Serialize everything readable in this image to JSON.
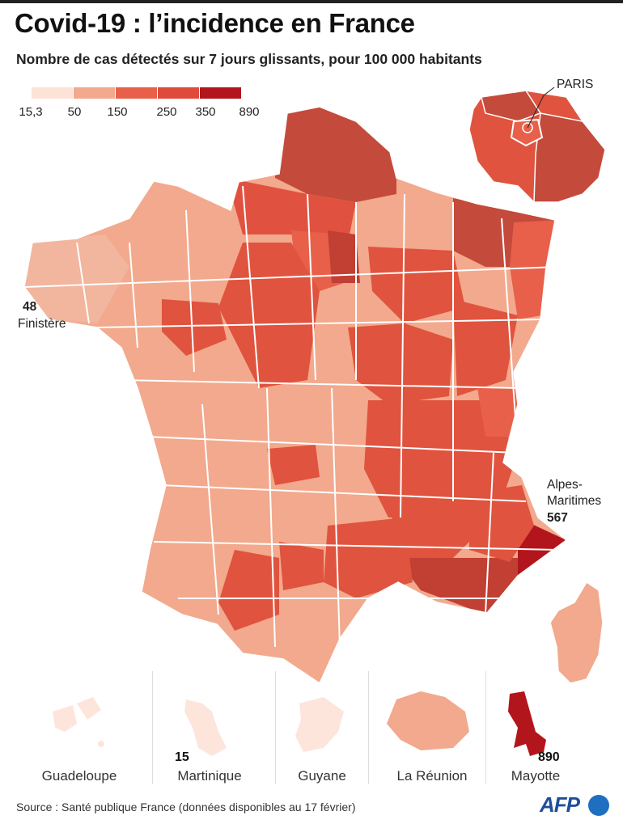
{
  "header": {
    "title": "Covid-19 : l’incidence en France",
    "subtitle": "Nombre de cas détectés sur 7 jours glissants, pour 100 000 habitants"
  },
  "legend": {
    "ticks": [
      "15,3",
      "50",
      "150",
      "250",
      "350",
      "890"
    ],
    "colors": [
      "#fde2d8",
      "#f2a98d",
      "#e8604a",
      "#e04a3c",
      "#c13f33",
      "#b2161c"
    ]
  },
  "callouts": {
    "paris": "PARIS",
    "finistere_value": "48",
    "finistere_name": "Finistère",
    "alpes_line1": "Alpes-",
    "alpes_line2": "Maritimes",
    "alpes_value": "567"
  },
  "overseas": [
    {
      "name": "Guadeloupe",
      "value": ""
    },
    {
      "name": "Martinique",
      "value": "15"
    },
    {
      "name": "Guyane",
      "value": ""
    },
    {
      "name": "La Réunion",
      "value": ""
    },
    {
      "name": "Mayotte",
      "value": "890"
    }
  ],
  "footer": {
    "source": "Source : Santé publique France (données disponibles au 17 février)",
    "brand": "AFP"
  }
}
